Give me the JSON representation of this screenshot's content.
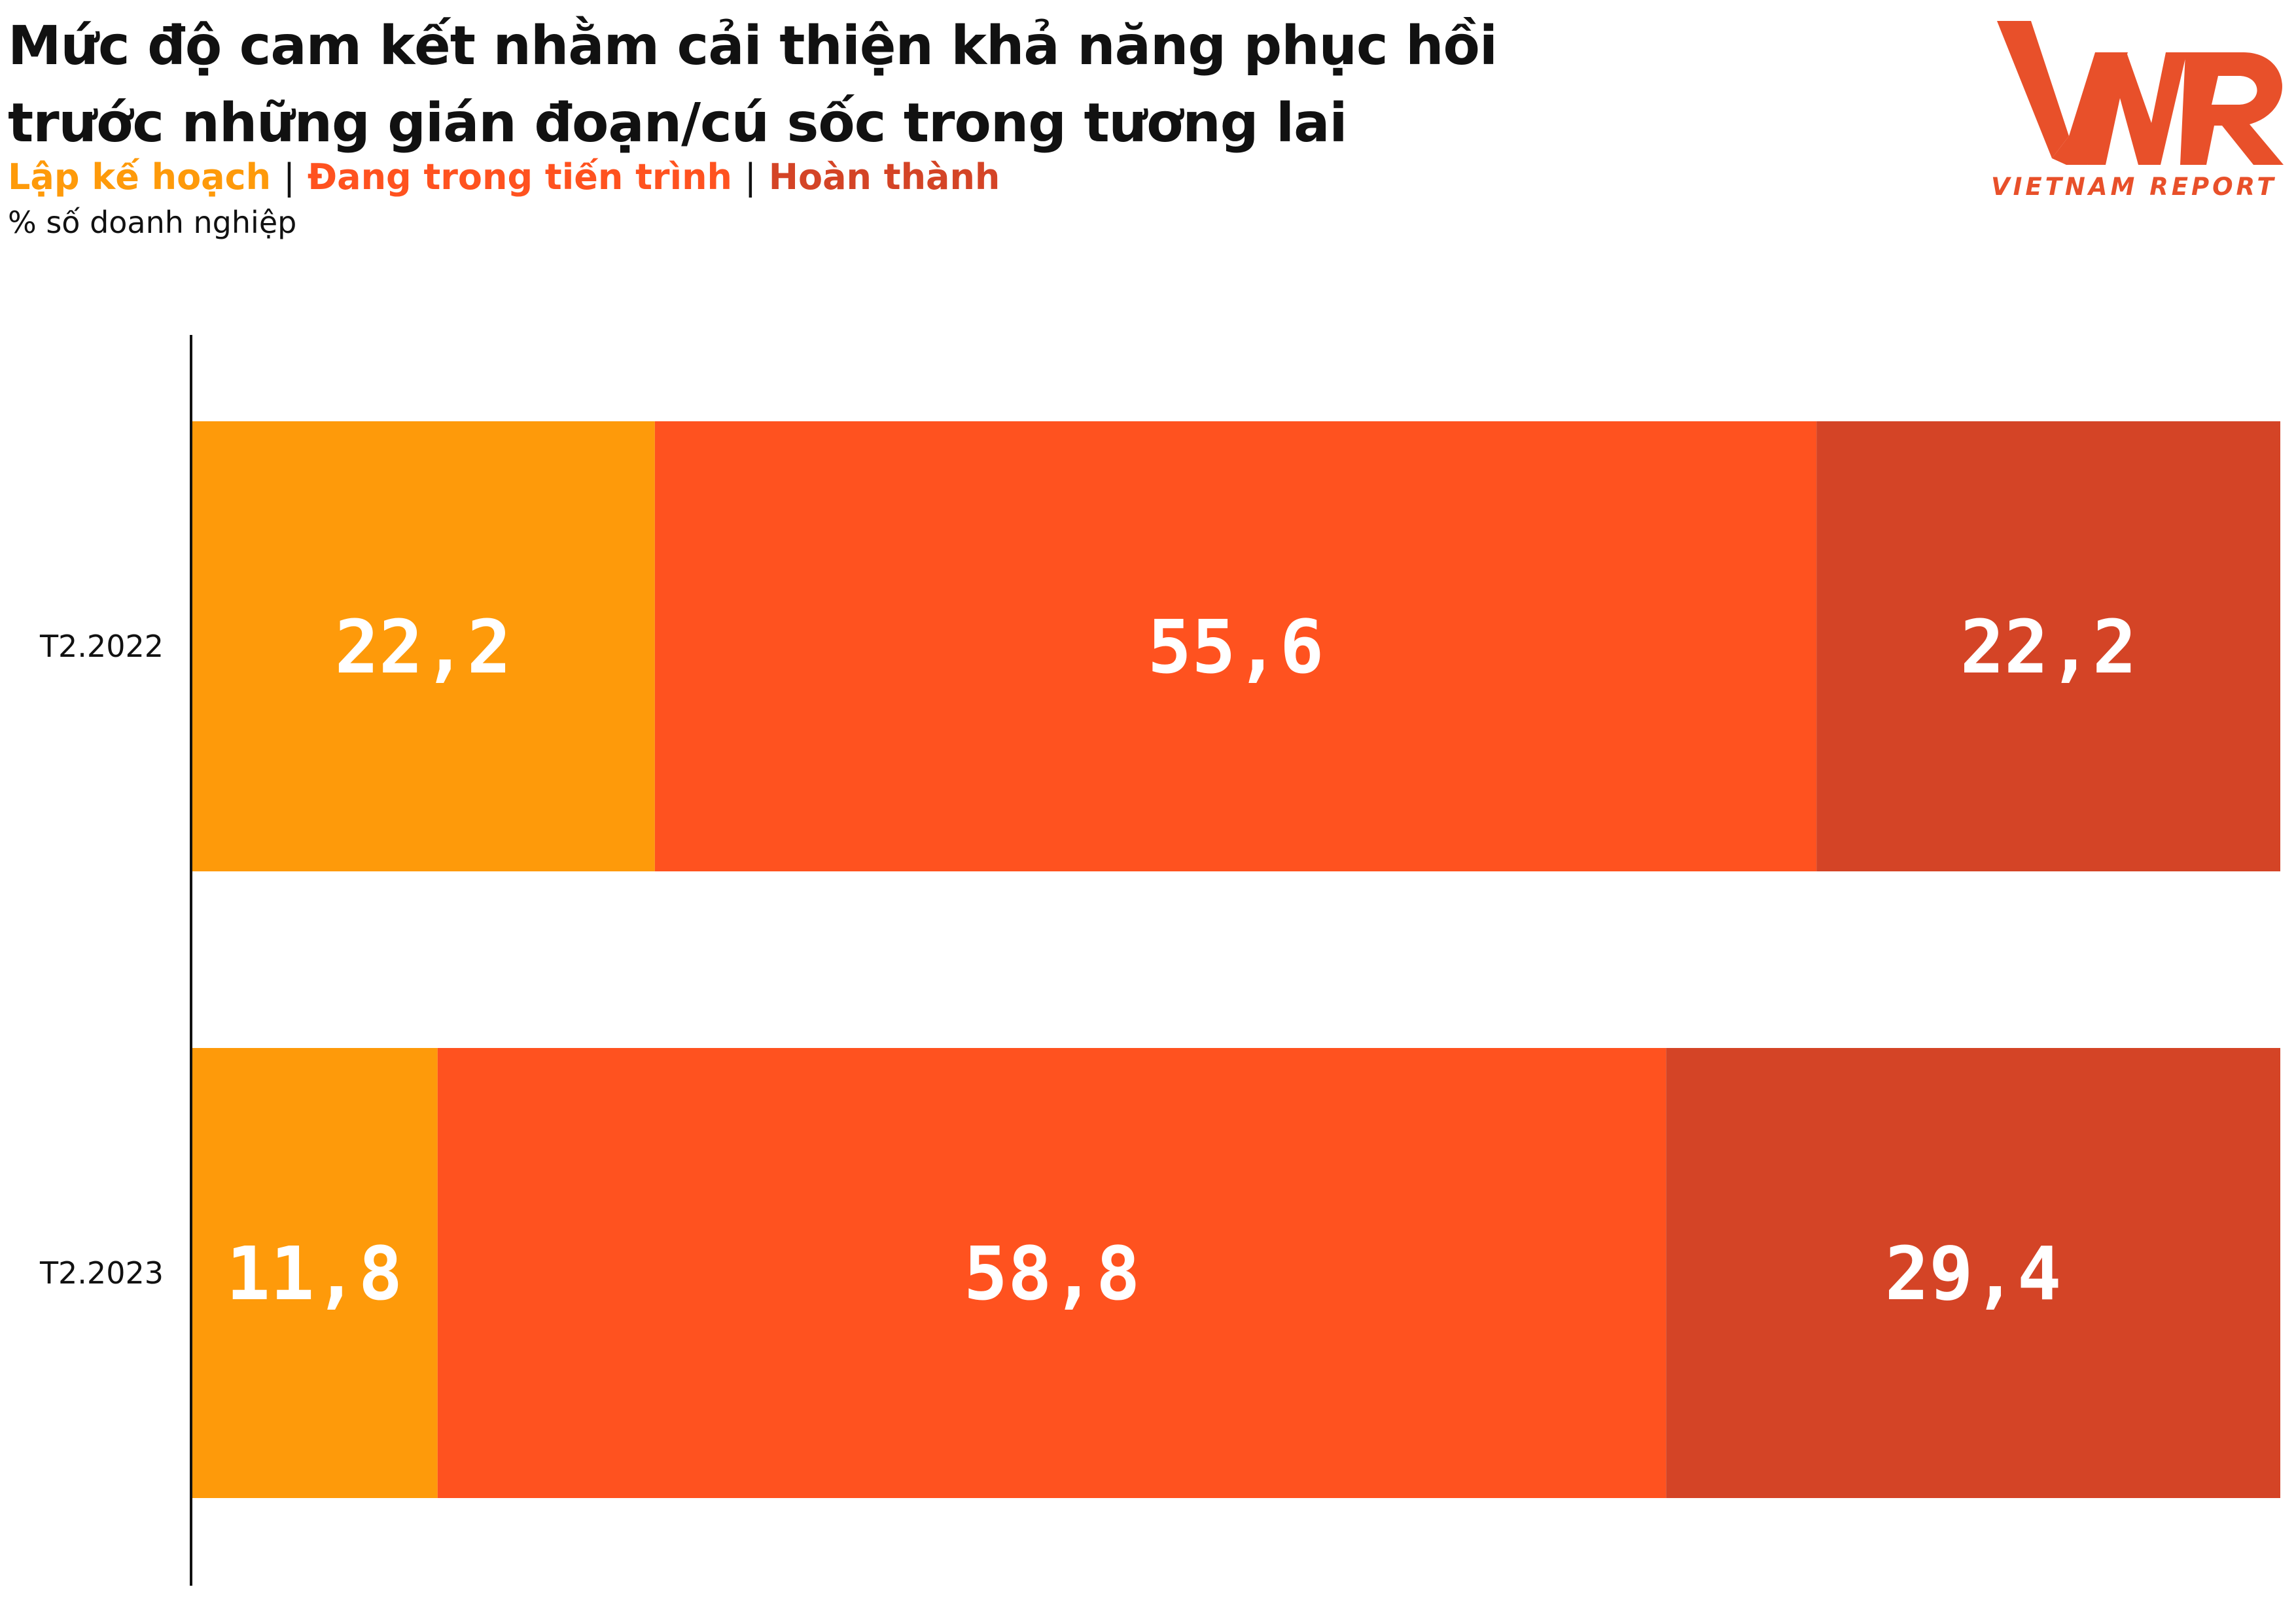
{
  "title_lines": [
    "Mức độ cam kết nhằm cải thiện khả năng phục hồi",
    "trước những gián đoạn/cú sốc trong tương lai"
  ],
  "unit_label": "% số doanh nghiệp",
  "legend_separator": "|",
  "logo": {
    "mark": "VNR",
    "text": "VIETNAM REPORT",
    "color": "#e8502a"
  },
  "chart_data": {
    "type": "bar",
    "orientation": "horizontal",
    "stacked": true,
    "xlim": [
      0,
      100
    ],
    "categories": [
      "T2.2022",
      "T2.2023"
    ],
    "series": [
      {
        "name": "Lập kế hoạch",
        "color": "#fe9a0a",
        "values": [
          22.2,
          11.8
        ],
        "labels": [
          "22,2",
          "11,8"
        ]
      },
      {
        "name": "Đang trong tiến trình",
        "color": "#ff521f",
        "values": [
          55.6,
          58.8
        ],
        "labels": [
          "55,6",
          "58,8"
        ]
      },
      {
        "name": "Hoàn thành",
        "color": "#d44426",
        "values": [
          22.2,
          29.4
        ],
        "labels": [
          "22,2",
          "29,4"
        ]
      }
    ]
  }
}
